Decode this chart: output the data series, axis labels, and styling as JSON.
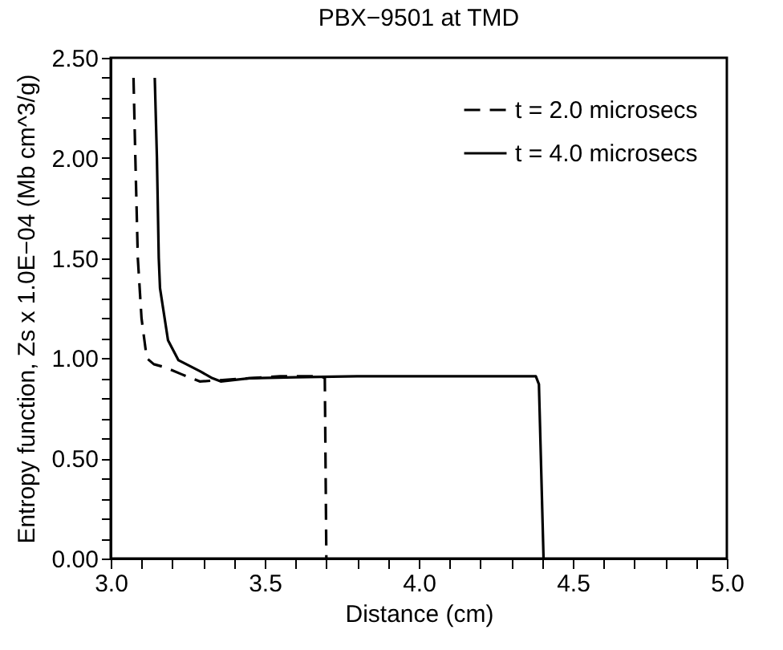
{
  "chart_data": {
    "type": "line",
    "title": "PBX−9501 at TMD",
    "xlabel": "Distance (cm)",
    "ylabel": "Entropy function, Zs x 1.0E−04 (Mb cm^3/g)",
    "xlim": [
      3.0,
      5.0
    ],
    "xticks": [
      {
        "value": 3.0,
        "label": "3.0"
      },
      {
        "value": 3.1,
        "label": null
      },
      {
        "value": 3.2,
        "label": null
      },
      {
        "value": 3.3,
        "label": null
      },
      {
        "value": 3.4,
        "label": null
      },
      {
        "value": 3.5,
        "label": "3.5"
      },
      {
        "value": 3.6,
        "label": null
      },
      {
        "value": 3.7,
        "label": null
      },
      {
        "value": 3.8,
        "label": null
      },
      {
        "value": 3.9,
        "label": null
      },
      {
        "value": 4.0,
        "label": "4.0"
      },
      {
        "value": 4.1,
        "label": null
      },
      {
        "value": 4.2,
        "label": null
      },
      {
        "value": 4.3,
        "label": null
      },
      {
        "value": 4.4,
        "label": null
      },
      {
        "value": 4.5,
        "label": "4.5"
      },
      {
        "value": 4.6,
        "label": null
      },
      {
        "value": 4.7,
        "label": null
      },
      {
        "value": 4.8,
        "label": null
      },
      {
        "value": 4.9,
        "label": null
      },
      {
        "value": 5.0,
        "label": "5.0"
      }
    ],
    "ylim": [
      0,
      2.5
    ],
    "yticks": [
      {
        "value": 0,
        "label": "0.00"
      },
      {
        "value": 0.1,
        "label": null
      },
      {
        "value": 0.2,
        "label": null
      },
      {
        "value": 0.3,
        "label": null
      },
      {
        "value": 0.4,
        "label": null
      },
      {
        "value": 0.5,
        "label": "0.50"
      },
      {
        "value": 0.6,
        "label": null
      },
      {
        "value": 0.7,
        "label": null
      },
      {
        "value": 0.8,
        "label": null
      },
      {
        "value": 0.9,
        "label": null
      },
      {
        "value": 1.0,
        "label": "1.00"
      },
      {
        "value": 1.1,
        "label": null
      },
      {
        "value": 1.2,
        "label": null
      },
      {
        "value": 1.3,
        "label": null
      },
      {
        "value": 1.4,
        "label": null
      },
      {
        "value": 1.5,
        "label": "1.50"
      },
      {
        "value": 1.6,
        "label": null
      },
      {
        "value": 1.7,
        "label": null
      },
      {
        "value": 1.8,
        "label": null
      },
      {
        "value": 1.9,
        "label": null
      },
      {
        "value": 2.0,
        "label": "2.00"
      },
      {
        "value": 2.1,
        "label": null
      },
      {
        "value": 2.2,
        "label": null
      },
      {
        "value": 2.3,
        "label": null
      },
      {
        "value": 2.4,
        "label": null
      },
      {
        "value": 2.5,
        "label": "2.50"
      }
    ],
    "grid": false,
    "legend": "top right",
    "series": [
      {
        "name": "t = 2.0 microsecs",
        "color": "#000000",
        "line_style": "dashed",
        "x": [
          3.074,
          3.08,
          3.088,
          3.1,
          3.117,
          3.14,
          3.175,
          3.23,
          3.289,
          3.35,
          3.45,
          3.55,
          3.684,
          3.695,
          3.7
        ],
        "values": [
          2.4,
          2.0,
          1.5,
          1.2,
          1.0,
          0.97,
          0.955,
          0.92,
          0.884,
          0.89,
          0.9,
          0.91,
          0.91,
          0.9,
          0
        ]
      },
      {
        "name": "t = 4.0 microsecs",
        "color": "#000000",
        "line_style": "solid",
        "x": [
          3.143,
          3.15,
          3.156,
          3.16,
          3.17,
          3.186,
          3.22,
          3.29,
          3.33,
          3.357,
          3.45,
          3.6,
          3.8,
          4.0,
          4.2,
          4.38,
          4.39,
          4.405
        ],
        "values": [
          2.4,
          2.0,
          1.5,
          1.35,
          1.25,
          1.09,
          0.99,
          0.935,
          0.9,
          0.884,
          0.9,
          0.905,
          0.91,
          0.91,
          0.91,
          0.91,
          0.87,
          0
        ]
      }
    ]
  }
}
